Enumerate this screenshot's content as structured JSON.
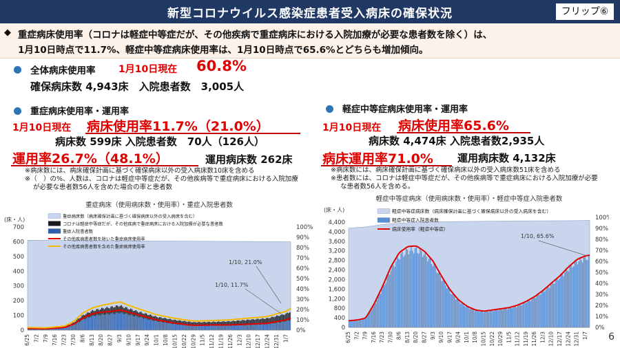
{
  "header": {
    "title": "新型コロナウイルス感染症患者受入病床の確保状況",
    "flip_label": "フリップ⑥"
  },
  "summary": {
    "bullet": "◆",
    "line1": "重症病床使用率（コロナは軽症中等症だが、その他疾病で重症病床における入院加療が必要な患者数を除く）は、",
    "line2": "1月10日時点で11.7%、軽症中等症病床使用率は、1月10日時点で65.6%とどちらも増加傾向。"
  },
  "overall": {
    "label": "全体病床使用率",
    "date": "1月10日現在",
    "rate": "60.8%",
    "detail": "確保病床数 4,943床　入院患者数　3,005人"
  },
  "severe": {
    "heading": "重症病床使用率・運用率",
    "date": "1月10日現在",
    "usage": "病床使用率11.7%（21.0%）",
    "beds_line": "病床数 599床  入院患者数　70人（126人）",
    "operation": "運用率26.7%（48.1%）",
    "op_beds": "運用病床数 262床",
    "notes": [
      "※病床数には、病床確保計画に基づく確保病床以外の受入病床数10床を含める",
      "※（　）の%、人数は、コロナは軽症中等症だが、その他疾病等で重症病床における入院加療",
      "が必要な患者数56人を含めた場合の率と患者数"
    ]
  },
  "mild": {
    "heading": "軽症中等症病床使用率・運用率",
    "date": "1月10日現在",
    "usage": "病床使用率65.6%",
    "beds_line": "病床数 4,474床 入院患者数2,935人",
    "operation": "病床運用率71.0%",
    "op_beds": "運用病床数 4,132床",
    "notes": [
      "※病床数には、病床確保計画に基づく確保病床以外の受入病床数51床を含める",
      "※患者数には、コロナは軽症中等症だが、その他疾病等で重症病床における入院加療が必要",
      "な患者数56人を含める。"
    ]
  },
  "page_number": "6",
  "colors": {
    "navy": "#1f3864",
    "accent_red": "#e00000",
    "bullet_blue": "#2e75b6",
    "bar_blue": "#2e75b6",
    "area": "#c9d5ec",
    "yellow": "#f5b800"
  },
  "chart_data": [
    {
      "type": "bar",
      "title": "重症病床（使用病床数・使用率）・重症入院患者数",
      "y_unit": "(床・人)",
      "ylim": [
        0,
        700
      ],
      "yticks": [
        0,
        100,
        200,
        300,
        400,
        500,
        600,
        700
      ],
      "y2lim": [
        0,
        100
      ],
      "y2ticks": [
        "0%",
        "10%",
        "20%",
        "30%",
        "40%",
        "50%",
        "60%",
        "70%",
        "80%",
        "90%",
        "100%"
      ],
      "x_ticks": [
        "6/25",
        "7/2",
        "7/9",
        "7/16",
        "7/23",
        "7/30",
        "8/6",
        "8/13",
        "8/20",
        "8/27",
        "9/3",
        "9/10",
        "9/17",
        "9/24",
        "10/1",
        "10/8",
        "10/15",
        "10/22",
        "10/29",
        "11/5",
        "11/12",
        "11/19",
        "11/26",
        "12/3",
        "12/10",
        "12/17",
        "12/24",
        "12/31",
        "1/7"
      ],
      "legend": [
        "重症病床数（病床確保計画に基づく確保病床以外の受入病床を含む）",
        "コロナは軽症中等症だが、その他疾病で重症病床における入院加療が必要な患者数",
        "重症入院患者数",
        "その他疾病患者数を除いた重症病床使用率",
        "その他疾病患者数を含めた重症病床使用率"
      ],
      "annotations": [
        "1/10, 21.0%",
        "1/10, 11.7%"
      ],
      "series": [
        {
          "name": "重症病床数（病床確保計画に基づく確保病床以外の受入病床を含む）",
          "kind": "area",
          "x_idx": [
            0,
            28.5
          ],
          "values": [
            610,
            599
          ]
        },
        {
          "name": "重症入院患者数",
          "kind": "bar",
          "x_idx": [
            0,
            2,
            4,
            5,
            6,
            7,
            8,
            9,
            10,
            11,
            12,
            14,
            16,
            18,
            20,
            22,
            24,
            26,
            27,
            28,
            28.5
          ],
          "values": [
            10,
            8,
            15,
            35,
            70,
            95,
            105,
            110,
            118,
            105,
            90,
            60,
            40,
            28,
            30,
            30,
            35,
            40,
            50,
            60,
            70
          ]
        },
        {
          "name": "コロナは軽症中等症だが、その他疾病で重症病床における入院加療が必要な患者数",
          "kind": "bar",
          "x_idx": [
            0,
            2,
            4,
            5,
            6,
            7,
            8,
            9,
            10,
            11,
            12,
            14,
            16,
            18,
            20,
            22,
            24,
            26,
            27,
            28,
            28.5
          ],
          "values": [
            5,
            5,
            8,
            15,
            30,
            35,
            40,
            45,
            48,
            40,
            35,
            30,
            28,
            25,
            25,
            30,
            35,
            40,
            45,
            50,
            56
          ]
        },
        {
          "name": "その他疾病患者数を除いた重症病床使用率",
          "kind": "line",
          "axis": "right",
          "x_idx": [
            0,
            2,
            4,
            5,
            6,
            7,
            8,
            9,
            10,
            11,
            12,
            14,
            16,
            18,
            20,
            22,
            24,
            26,
            27,
            28,
            28.5
          ],
          "values": [
            1.5,
            1.3,
            2.5,
            5.8,
            11.7,
            15.8,
            17.3,
            18.2,
            19.5,
            17.3,
            14.9,
            9.9,
            6.6,
            4.6,
            5,
            5,
            5.8,
            6.6,
            8.3,
            9.9,
            11.7
          ]
        },
        {
          "name": "その他疾病患者数を含めた重症病床使用率",
          "kind": "line",
          "axis": "right",
          "x_idx": [
            0,
            2,
            4,
            5,
            6,
            7,
            8,
            9,
            10,
            11,
            12,
            14,
            16,
            18,
            20,
            22,
            24,
            26,
            27,
            28,
            28.5
          ],
          "values": [
            2.5,
            2.2,
            3.9,
            8.3,
            16.7,
            21.5,
            24,
            25.6,
            27.4,
            23.9,
            20.7,
            14.9,
            11.3,
            8.8,
            9.2,
            10,
            11.6,
            13.2,
            15.8,
            18.2,
            21.0
          ]
        }
      ]
    },
    {
      "type": "bar",
      "title": "軽症中等症病床（使用病床数・使用率）・軽症中等症入院患者数",
      "y_unit": "(床・人)",
      "ylim": [
        0,
        4600
      ],
      "yticks": [
        0,
        400,
        800,
        1200,
        1600,
        2000,
        2400,
        2800,
        3200,
        3600,
        4000,
        4400
      ],
      "y2lim": [
        0,
        100
      ],
      "y2ticks": [
        "0%",
        "10%",
        "20%",
        "30%",
        "40%",
        "50%",
        "60%",
        "70%",
        "80%",
        "90%",
        "100%"
      ],
      "x_ticks": [
        "6/25",
        "7/2",
        "7/9",
        "7/16",
        "7/23",
        "7/30",
        "8/6",
        "8/13",
        "8/20",
        "8/27",
        "9/3",
        "9/10",
        "9/17",
        "9/24",
        "10/1",
        "10/8",
        "10/15",
        "10/22",
        "10/29",
        "11/5",
        "11/12",
        "11/19",
        "11/26",
        "12/3",
        "12/10",
        "12/17",
        "12/24",
        "12/31",
        "1/7"
      ],
      "legend": [
        "軽症中等症病床数（病床確保計画に基づく確保病床以外の受入病床を含む）",
        "軽症中等症入院患者数",
        "病床使用率（軽症中等症）"
      ],
      "annotations": [
        "1/10, 65.6%"
      ],
      "series": [
        {
          "name": "軽症中等症病床数（病床確保計画に基づく確保病床以外の受入病床を含む）",
          "kind": "area",
          "x_idx": [
            0,
            2,
            4,
            6,
            8,
            12,
            20,
            26,
            28.5
          ],
          "values": [
            4150,
            4200,
            4300,
            4350,
            4400,
            4420,
            4450,
            4460,
            4474
          ]
        },
        {
          "name": "軽症中等症入院患者数",
          "kind": "bar",
          "x_idx": [
            0,
            1,
            2,
            3,
            4,
            5,
            6,
            7,
            8,
            9,
            10,
            11,
            12,
            13,
            14,
            15,
            16,
            17,
            18,
            19,
            20,
            21,
            22,
            23,
            24,
            25,
            26,
            27,
            28,
            28.5
          ],
          "values": [
            250,
            280,
            350,
            900,
            1600,
            2400,
            2950,
            3200,
            3250,
            3050,
            2650,
            2050,
            1500,
            1100,
            850,
            700,
            650,
            700,
            750,
            800,
            900,
            1050,
            1250,
            1500,
            1800,
            2100,
            2450,
            2750,
            2900,
            2935
          ]
        },
        {
          "name": "病床使用率（軽症中等症）",
          "kind": "line",
          "axis": "right",
          "x_idx": [
            0,
            1,
            2,
            3,
            4,
            5,
            6,
            7,
            8,
            9,
            10,
            11,
            12,
            13,
            14,
            15,
            16,
            17,
            18,
            19,
            20,
            21,
            22,
            23,
            24,
            25,
            26,
            27,
            28,
            28.5
          ],
          "values": [
            6,
            6.7,
            8.3,
            21,
            37,
            55,
            68,
            73.5,
            74,
            69,
            60,
            46.4,
            34,
            25,
            19.2,
            15.8,
            14.7,
            15.8,
            16.9,
            18,
            20.3,
            23.6,
            28,
            33.7,
            40.4,
            47,
            55,
            61.7,
            65,
            65.6
          ]
        }
      ]
    }
  ]
}
